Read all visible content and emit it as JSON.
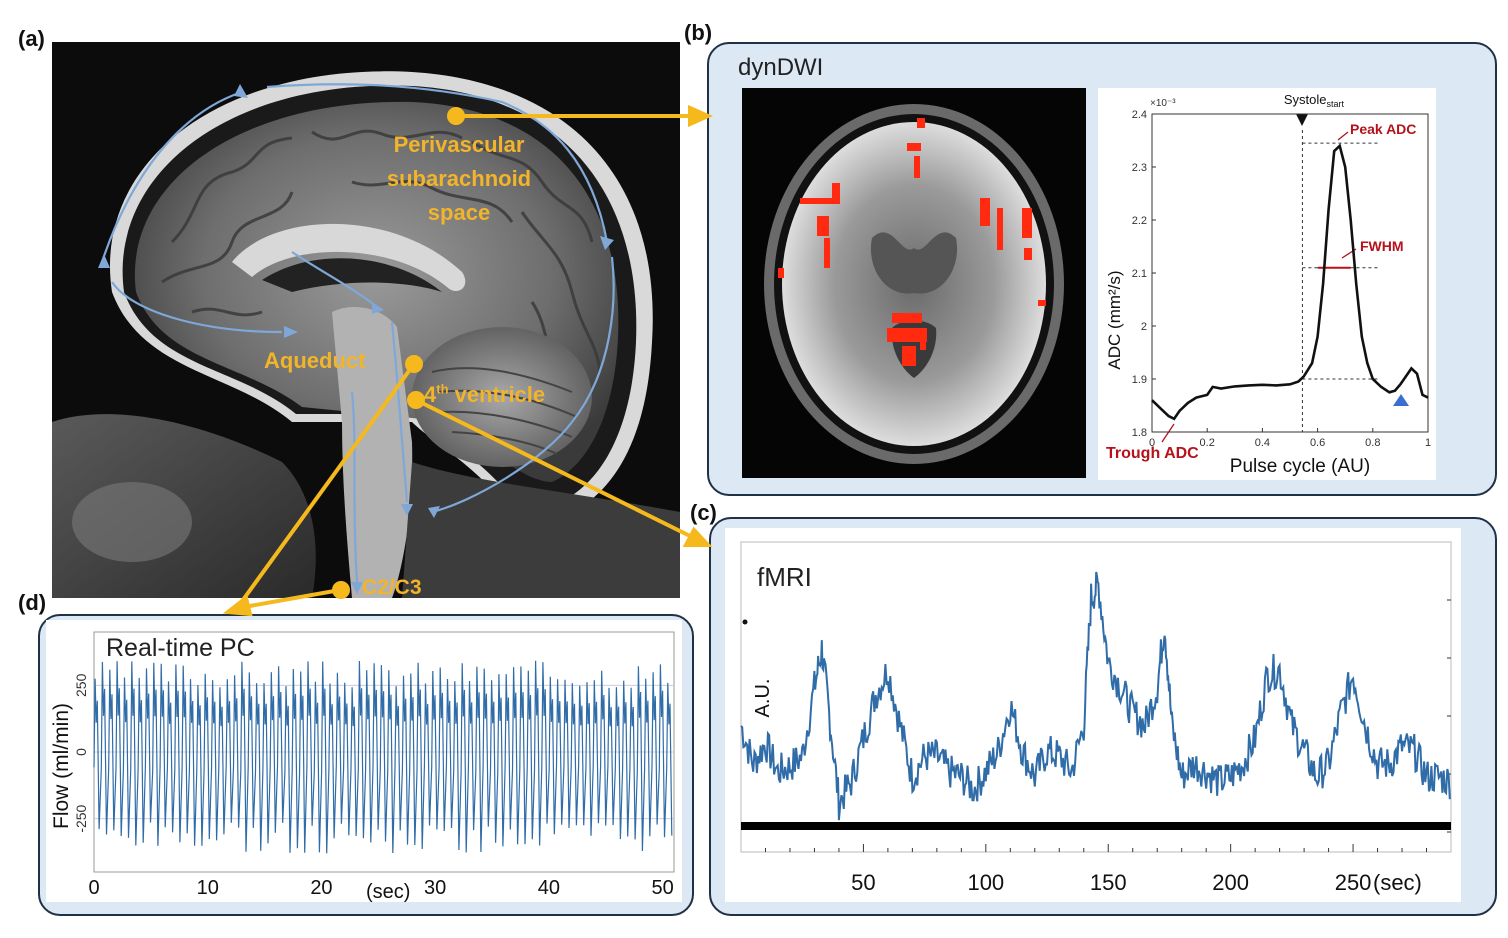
{
  "panels": {
    "a": {
      "letter": "(a)",
      "labels": {
        "perivascular_line1": "Perivascular",
        "perivascular_line2": "subarachnoid space",
        "aqueduct": "Aqueduct",
        "fourth_ventricle": "4",
        "fourth_ventricle_sup": "th",
        "fourth_ventricle_rest": " ventricle",
        "c2c3": "C2/C3"
      }
    },
    "b": {
      "letter": "(b)",
      "title": "dynDWI",
      "plot": {
        "exponent": "×10⁻³",
        "systole_label": "Systole",
        "systole_sub": "start",
        "peak_label": "Peak ADC",
        "fwhm_label": "FWHM",
        "trough_label": "Trough ADC",
        "ylabel": "ADC (mm²/s)",
        "xlabel": "Pulse cycle (AU)",
        "yticks": [
          "2.4",
          "2.3",
          "2.2",
          "2.1",
          "2",
          "1.9",
          "1.8"
        ],
        "xticks": [
          "0",
          "0.2",
          "0.4",
          "0.6",
          "0.8",
          "1"
        ]
      }
    },
    "c": {
      "letter": "(c)",
      "title": "fMRI",
      "ylabel": "A.U.",
      "xticks": [
        "50",
        "100",
        "150",
        "200",
        "250"
      ],
      "xunit": "(sec)"
    },
    "d": {
      "letter": "(d)",
      "title": "Real-time PC",
      "ylabel": "Flow (ml/min)",
      "yticks": [
        "250",
        "0",
        "-250"
      ],
      "xticks": [
        "0",
        "10",
        "20",
        "30",
        "40",
        "50"
      ],
      "xunit": "(sec)"
    }
  },
  "chart_data": [
    {
      "type": "line",
      "panel": "b",
      "xlabel": "Pulse cycle (AU)",
      "ylabel": "ADC (mm²/s)",
      "xlim": [
        0,
        1
      ],
      "ylim": [
        1.8,
        2.4
      ],
      "y_scale_exponent": "×10⁻³",
      "x": [
        0.0,
        0.03,
        0.06,
        0.08,
        0.1,
        0.13,
        0.16,
        0.2,
        0.22,
        0.25,
        0.3,
        0.35,
        0.4,
        0.45,
        0.5,
        0.53,
        0.55,
        0.58,
        0.6,
        0.62,
        0.64,
        0.66,
        0.68,
        0.7,
        0.72,
        0.74,
        0.76,
        0.78,
        0.8,
        0.83,
        0.86,
        0.88,
        0.9,
        0.92,
        0.94,
        0.96,
        0.98,
        1.0
      ],
      "y": [
        1.86,
        1.845,
        1.83,
        1.825,
        1.84,
        1.855,
        1.865,
        1.87,
        1.885,
        1.882,
        1.886,
        1.888,
        1.889,
        1.888,
        1.89,
        1.895,
        1.905,
        1.93,
        1.98,
        2.08,
        2.22,
        2.33,
        2.34,
        2.3,
        2.2,
        2.08,
        1.98,
        1.93,
        1.9,
        1.885,
        1.875,
        1.878,
        1.89,
        1.905,
        1.92,
        1.91,
        1.87,
        1.865
      ],
      "annotations": [
        "Systole start",
        "Peak ADC",
        "FWHM",
        "Trough ADC"
      ]
    },
    {
      "type": "line",
      "panel": "c",
      "xlabel": "(sec)",
      "ylabel": "A.U.",
      "xlim": [
        0,
        290
      ],
      "ylim": [
        0,
        1
      ],
      "x": [
        0,
        5,
        10,
        15,
        20,
        25,
        30,
        33,
        36,
        40,
        45,
        50,
        55,
        60,
        65,
        70,
        75,
        80,
        85,
        90,
        95,
        100,
        105,
        110,
        115,
        120,
        125,
        130,
        135,
        140,
        143,
        146,
        150,
        155,
        160,
        165,
        170,
        173,
        176,
        180,
        185,
        190,
        195,
        200,
        205,
        210,
        215,
        220,
        225,
        230,
        235,
        240,
        245,
        250,
        255,
        260,
        265,
        270,
        275,
        280,
        285,
        290
      ],
      "y": [
        0.4,
        0.25,
        0.33,
        0.22,
        0.24,
        0.28,
        0.55,
        0.7,
        0.45,
        0.1,
        0.18,
        0.35,
        0.52,
        0.62,
        0.4,
        0.2,
        0.28,
        0.28,
        0.22,
        0.2,
        0.15,
        0.22,
        0.3,
        0.48,
        0.3,
        0.2,
        0.3,
        0.28,
        0.22,
        0.4,
        0.9,
        0.95,
        0.65,
        0.55,
        0.45,
        0.4,
        0.55,
        0.8,
        0.4,
        0.2,
        0.25,
        0.22,
        0.18,
        0.2,
        0.25,
        0.35,
        0.6,
        0.62,
        0.4,
        0.3,
        0.2,
        0.25,
        0.45,
        0.6,
        0.4,
        0.25,
        0.25,
        0.32,
        0.3,
        0.2,
        0.2,
        0.18
      ]
    },
    {
      "type": "line",
      "panel": "d",
      "xlabel": "(sec)",
      "ylabel": "Flow (ml/min)",
      "xlim": [
        0,
        51
      ],
      "ylim": [
        -450,
        450
      ],
      "cycles_per_sec": 1.55,
      "amplitude_positive": 300,
      "amplitude_negative": -350
    }
  ],
  "colors": {
    "mri_label": "#f2b42a",
    "arrow": "#f5b91e",
    "flow_arrow": "#7fa8d8",
    "panel_border": "#1f3146",
    "panel_fill": "#dde8f5",
    "trace": "#2f6ca8",
    "annotation_red": "#b5121b",
    "activation": "#ff2a10"
  }
}
